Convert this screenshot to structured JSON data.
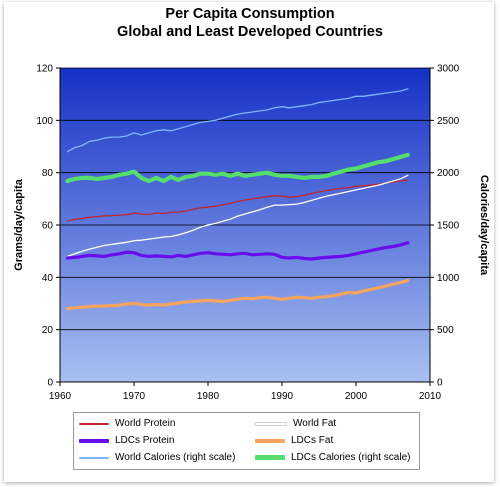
{
  "title": "Per Capita Consumption",
  "subtitle": "Global and Least Developed Countries",
  "chart_data": {
    "type": "line",
    "title": "Per Capita Consumption",
    "subtitle": "Global and Least Developed Countries",
    "xlabel": "",
    "ylabel": "Grams/day/capita",
    "y2label": "Calories/day/capita",
    "xlim": [
      1960,
      2010
    ],
    "ylim": [
      0,
      120
    ],
    "y2lim": [
      0,
      3000
    ],
    "x_ticks": [
      "1960",
      "1970",
      "1980",
      "1990",
      "2000",
      "2010"
    ],
    "y_ticks": [
      "0",
      "20",
      "40",
      "60",
      "80",
      "100",
      "120"
    ],
    "y2_ticks": [
      "0",
      "500",
      "1000",
      "1500",
      "2000",
      "2500",
      "3000"
    ],
    "grid": true,
    "legend_position": "bottom",
    "x": [
      1961,
      1962,
      1963,
      1964,
      1965,
      1966,
      1967,
      1968,
      1969,
      1970,
      1971,
      1972,
      1973,
      1974,
      1975,
      1976,
      1977,
      1978,
      1979,
      1980,
      1981,
      1982,
      1983,
      1984,
      1985,
      1986,
      1987,
      1988,
      1989,
      1990,
      1991,
      1992,
      1993,
      1994,
      1995,
      1996,
      1997,
      1998,
      1999,
      2000,
      2001,
      2002,
      2003,
      2004,
      2005,
      2006,
      2007
    ],
    "series": [
      {
        "name": "World Protein",
        "axis": "left",
        "color": "#c0282e",
        "width": 1.3,
        "values": [
          61.5,
          62.2,
          62.5,
          63.0,
          63.2,
          63.5,
          63.6,
          63.8,
          63.9,
          64.5,
          64.2,
          64.0,
          64.6,
          64.4,
          64.8,
          65.0,
          65.3,
          66.0,
          66.6,
          66.8,
          67.2,
          67.8,
          68.2,
          69.0,
          69.5,
          70.0,
          70.4,
          70.8,
          71.2,
          71.0,
          70.6,
          70.8,
          71.4,
          72.0,
          72.6,
          73.2,
          73.6,
          74.0,
          74.2,
          74.8,
          75.0,
          75.2,
          75.6,
          76.0,
          76.4,
          76.8,
          77.2
        ]
      },
      {
        "name": "World Fat",
        "axis": "left",
        "color": "#ffffff",
        "width": 1.3,
        "values": [
          48.0,
          49.0,
          50.0,
          50.8,
          51.5,
          52.2,
          52.6,
          53.0,
          53.4,
          54.0,
          54.2,
          54.6,
          55.0,
          55.4,
          55.6,
          56.2,
          57.0,
          58.0,
          59.2,
          60.0,
          60.6,
          61.4,
          62.2,
          63.4,
          64.2,
          65.0,
          65.8,
          66.8,
          67.6,
          67.6,
          67.8,
          68.0,
          68.6,
          69.4,
          70.2,
          71.0,
          71.6,
          72.2,
          72.8,
          73.4,
          74.0,
          74.6,
          75.2,
          76.0,
          76.8,
          77.6,
          79.0
        ]
      },
      {
        "name": "LDCs Protein",
        "axis": "left",
        "color": "#6a0dee",
        "width": 3.2,
        "values": [
          47.4,
          47.6,
          48.0,
          48.4,
          48.2,
          48.0,
          48.6,
          49.0,
          49.6,
          49.4,
          48.4,
          48.0,
          48.2,
          48.0,
          47.8,
          48.4,
          48.0,
          48.6,
          49.2,
          49.4,
          49.0,
          48.8,
          48.6,
          49.0,
          49.2,
          48.6,
          48.8,
          49.0,
          48.8,
          47.6,
          47.4,
          47.6,
          47.2,
          47.0,
          47.4,
          47.6,
          47.8,
          48.0,
          48.4,
          49.0,
          49.6,
          50.2,
          50.8,
          51.4,
          51.8,
          52.4,
          53.2
        ]
      },
      {
        "name": "LDCs Fat",
        "axis": "left",
        "color": "#f4a45e",
        "width": 3.2,
        "values": [
          28.0,
          28.4,
          28.6,
          28.8,
          29.0,
          29.0,
          29.2,
          29.4,
          29.8,
          30.0,
          29.6,
          29.4,
          29.6,
          29.4,
          29.8,
          30.2,
          30.6,
          30.8,
          31.0,
          31.2,
          31.0,
          30.8,
          31.2,
          31.6,
          32.0,
          31.8,
          32.2,
          32.4,
          32.0,
          31.6,
          32.0,
          32.4,
          32.2,
          32.0,
          32.4,
          32.6,
          33.0,
          33.6,
          34.2,
          34.0,
          34.8,
          35.4,
          36.0,
          36.6,
          37.4,
          38.0,
          38.8
        ]
      },
      {
        "name": "World Calories (right scale)",
        "axis": "right",
        "color": "#7eb6ff",
        "width": 1.3,
        "values": [
          2200,
          2240,
          2260,
          2300,
          2310,
          2330,
          2340,
          2340,
          2350,
          2380,
          2360,
          2380,
          2400,
          2410,
          2400,
          2420,
          2440,
          2460,
          2480,
          2490,
          2500,
          2520,
          2540,
          2560,
          2570,
          2580,
          2590,
          2600,
          2620,
          2630,
          2620,
          2630,
          2640,
          2650,
          2670,
          2680,
          2690,
          2700,
          2710,
          2730,
          2730,
          2740,
          2750,
          2760,
          2770,
          2780,
          2800
        ]
      },
      {
        "name": "LDCs Calories (right scale)",
        "axis": "right",
        "color": "#55dd6e",
        "width": 4.2,
        "values": [
          1920,
          1940,
          1950,
          1950,
          1940,
          1950,
          1960,
          1980,
          1990,
          2010,
          1950,
          1920,
          1950,
          1920,
          1960,
          1930,
          1960,
          1970,
          1990,
          1990,
          1980,
          1990,
          1970,
          1990,
          1970,
          1980,
          1990,
          2000,
          1980,
          1970,
          1970,
          1960,
          1950,
          1960,
          1960,
          1970,
          1990,
          2010,
          2030,
          2040,
          2060,
          2080,
          2100,
          2110,
          2130,
          2150,
          2170
        ]
      }
    ]
  },
  "legend": {
    "world_protein": "World Protein",
    "world_fat": "World Fat",
    "ldcs_protein": "LDCs Protein",
    "ldcs_fat": "LDCs Fat",
    "world_calories": "World Calories (right scale)",
    "ldcs_calories": "LDCs Calories (right scale)"
  },
  "colors": {
    "plot_top": "#1531c6",
    "plot_bottom": "#a9c0f1",
    "gridline": "#000000"
  }
}
